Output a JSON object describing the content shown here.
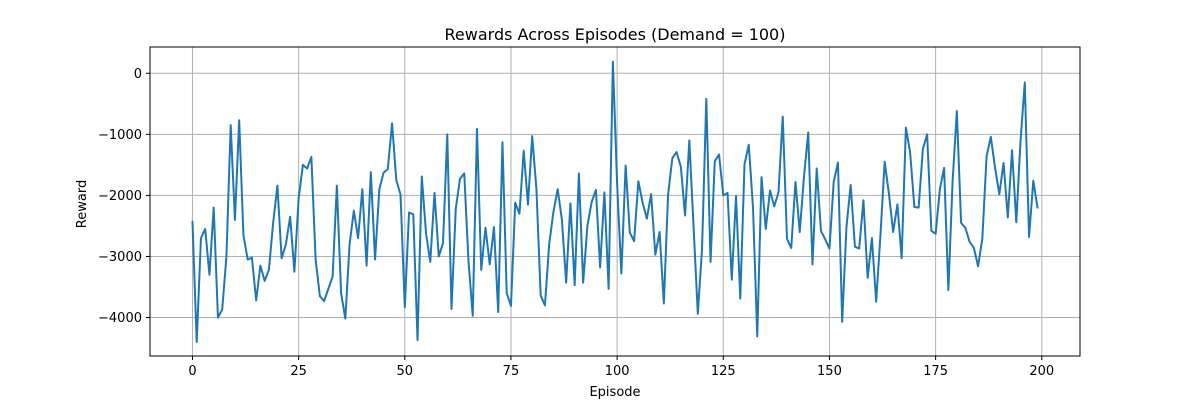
{
  "chart_data": {
    "type": "line",
    "title": "Rewards Across Episodes (Demand = 100)",
    "xlabel": "Episode",
    "ylabel": "Reward",
    "xlim": [
      -10,
      209
    ],
    "ylim": [
      -4630,
      430
    ],
    "xticks": [
      0,
      25,
      50,
      75,
      100,
      125,
      150,
      175,
      200
    ],
    "xtick_labels": [
      "0",
      "25",
      "50",
      "75",
      "100",
      "125",
      "150",
      "175",
      "200"
    ],
    "yticks": [
      0,
      -1000,
      -2000,
      -3000,
      -4000
    ],
    "ytick_labels": [
      "0",
      "−1000",
      "−2000",
      "−3000",
      "−4000"
    ],
    "grid": true,
    "line_color": "#1f77b4",
    "series": [
      {
        "x": [
          0,
          1,
          2,
          3,
          4,
          5,
          6,
          7,
          8,
          9,
          10,
          11,
          12,
          13,
          14,
          15,
          16,
          17,
          18,
          19,
          20,
          21,
          22,
          23,
          24,
          25,
          26,
          27,
          28,
          29,
          30,
          31,
          32,
          33,
          34,
          35,
          36,
          37,
          38,
          39,
          40,
          41,
          42,
          43,
          44,
          45,
          46,
          47,
          48,
          49,
          50,
          51,
          52,
          53,
          54,
          55,
          56,
          57,
          58,
          59,
          60,
          61,
          62,
          63,
          64,
          65,
          66,
          67,
          68,
          69,
          70,
          71,
          72,
          73,
          74,
          75,
          76,
          77,
          78,
          79,
          80,
          81,
          82,
          83,
          84,
          85,
          86,
          87,
          88,
          89,
          90,
          91,
          92,
          93,
          94,
          95,
          96,
          97,
          98,
          99,
          100,
          101,
          102,
          103,
          104,
          105,
          106,
          107,
          108,
          109,
          110,
          111,
          112,
          113,
          114,
          115,
          116,
          117,
          118,
          119,
          120,
          121,
          122,
          123,
          124,
          125,
          126,
          127,
          128,
          129,
          130,
          131,
          132,
          133,
          134,
          135,
          136,
          137,
          138,
          139,
          140,
          141,
          142,
          143,
          144,
          145,
          146,
          147,
          148,
          149,
          150,
          151,
          152,
          153,
          154,
          155,
          156,
          157,
          158,
          159,
          160,
          161,
          162,
          163,
          164,
          165,
          166,
          167,
          168,
          169,
          170,
          171,
          172,
          173,
          174,
          175,
          176,
          177,
          178,
          179,
          180,
          181,
          182,
          183,
          184,
          185,
          186,
          187,
          188,
          189,
          190,
          191,
          192,
          193,
          194,
          195,
          196,
          197,
          198,
          199
        ],
        "values": [
          -2430,
          -4400,
          -2700,
          -2550,
          -3300,
          -2200,
          -4000,
          -3870,
          -3000,
          -850,
          -2400,
          -770,
          -2650,
          -3050,
          -3020,
          -3720,
          -3150,
          -3400,
          -3220,
          -2450,
          -1840,
          -3030,
          -2800,
          -2350,
          -3250,
          -2050,
          -1500,
          -1560,
          -1370,
          -3050,
          -3650,
          -3730,
          -3530,
          -3330,
          -1840,
          -3600,
          -4020,
          -2800,
          -2250,
          -2700,
          -1900,
          -3150,
          -1620,
          -3050,
          -1900,
          -1630,
          -1570,
          -820,
          -1750,
          -1990,
          -3830,
          -2280,
          -2310,
          -4370,
          -1690,
          -2620,
          -3090,
          -1960,
          -3000,
          -2780,
          -1000,
          -3860,
          -2220,
          -1730,
          -1640,
          -3080,
          -3970,
          -910,
          -3220,
          -2530,
          -3130,
          -2520,
          -3910,
          -1130,
          -3600,
          -3810,
          -2120,
          -2300,
          -1270,
          -2150,
          -1030,
          -1900,
          -3640,
          -3800,
          -2800,
          -2270,
          -1900,
          -2400,
          -3430,
          -2130,
          -3470,
          -1640,
          -3430,
          -2500,
          -2110,
          -1910,
          -3180,
          -1950,
          -3530,
          190,
          -1810,
          -3280,
          -1510,
          -2610,
          -2750,
          -1770,
          -2120,
          -2380,
          -1980,
          -2970,
          -2600,
          -3770,
          -1990,
          -1390,
          -1290,
          -1530,
          -2330,
          -1100,
          -2510,
          -3940,
          -2870,
          -420,
          -3090,
          -1440,
          -1330,
          -2000,
          -1960,
          -3380,
          -2010,
          -3690,
          -1490,
          -1170,
          -2200,
          -4310,
          -1700,
          -2550,
          -1920,
          -2180,
          -1950,
          -710,
          -2710,
          -2860,
          -1780,
          -2600,
          -1700,
          -970,
          -3130,
          -1560,
          -2580,
          -2720,
          -2870,
          -1780,
          -1460,
          -4070,
          -2520,
          -1830,
          -2840,
          -2870,
          -2080,
          -3350,
          -2700,
          -3740,
          -2660,
          -1450,
          -1970,
          -2600,
          -2150,
          -3030,
          -890,
          -1300,
          -2190,
          -2200,
          -1240,
          -1000,
          -2580,
          -2630,
          -1900,
          -1550,
          -3550,
          -1770,
          -620,
          -2450,
          -2530,
          -2760,
          -2860,
          -3160,
          -2710,
          -1360,
          -1040,
          -1550,
          -1980,
          -1470,
          -2360,
          -1260,
          -2440,
          -1100,
          -150,
          -2680,
          -1760,
          -2200
        ]
      }
    ]
  }
}
